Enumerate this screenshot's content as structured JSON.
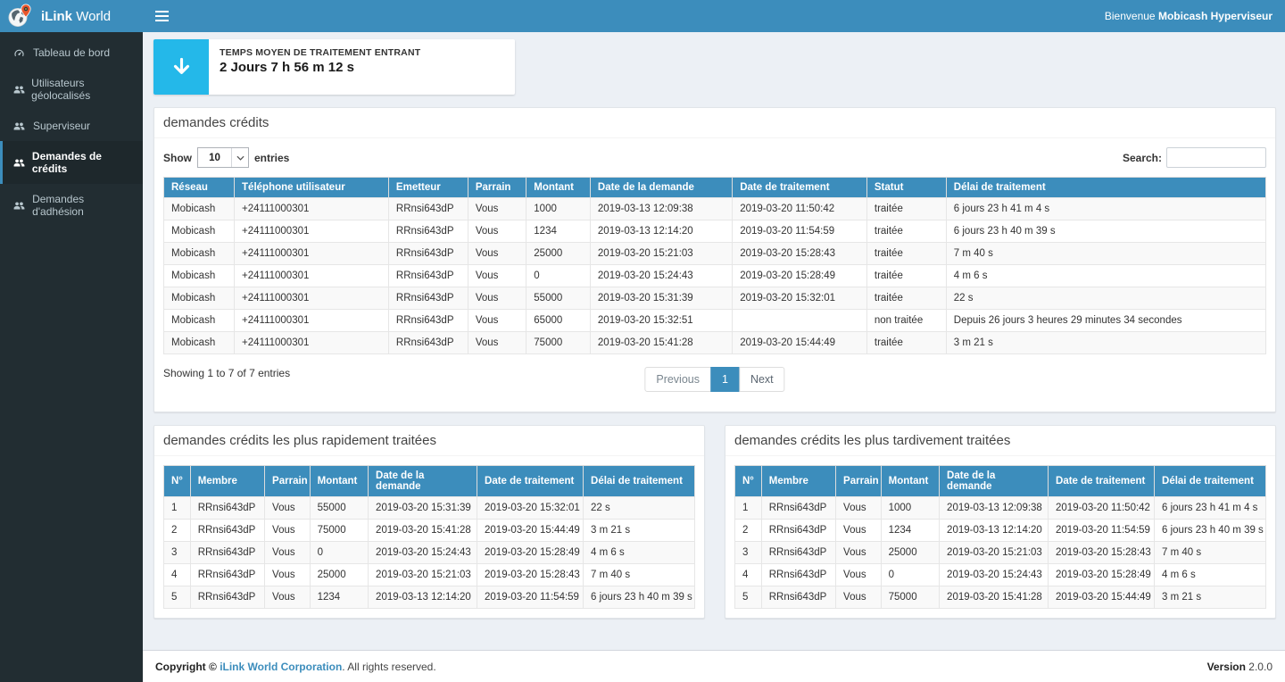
{
  "colors": {
    "navbar_blue": "#3c8dbc",
    "sidebar_dark": "#222d32",
    "sidebar_active_bg": "#1e282c",
    "aqua_accent": "#24b8e9",
    "pin_orange": "#e8552b",
    "row_stripe": "#f9f9f9",
    "content_bg": "#ecf0f5"
  },
  "brand": {
    "bold": "iLink",
    "regular": "World"
  },
  "navbar": {
    "welcome_prefix": "Bienvenue",
    "welcome_user": "Mobicash Hyperviseur"
  },
  "sidebar": {
    "items": [
      {
        "label": "Tableau de bord",
        "icon": "dashboard-icon",
        "active": false
      },
      {
        "label": "Utilisateurs géolocalisés",
        "icon": "users-icon",
        "active": false
      },
      {
        "label": "Superviseur",
        "icon": "users-icon",
        "active": false
      },
      {
        "label": "Demandes de crédits",
        "icon": "users-icon",
        "active": true
      },
      {
        "label": "Demandes d'adhésion",
        "icon": "users-icon",
        "active": false
      }
    ]
  },
  "info_card": {
    "title": "TEMPS MOYEN DE TRAITEMENT ENTRANT",
    "value": "2 Jours 7 h 56 m 12 s",
    "icon": "arrow-down-icon"
  },
  "credits_panel": {
    "title": "demandes crédits",
    "length_label_before": "Show",
    "length_value": "10",
    "length_label_after": "entries",
    "search_label": "Search:",
    "search_value": "",
    "columns": [
      "Réseau",
      "Téléphone utilisateur",
      "Emetteur",
      "Parrain",
      "Montant",
      "Date de la demande",
      "Date de traitement",
      "Statut",
      "Délai de traitement"
    ],
    "rows": [
      [
        "Mobicash",
        "+24111000301",
        "RRnsi643dP",
        "Vous",
        "1000",
        "2019-03-13 12:09:38",
        "2019-03-20 11:50:42",
        "traitée",
        "6 jours 23 h 41 m 4 s"
      ],
      [
        "Mobicash",
        "+24111000301",
        "RRnsi643dP",
        "Vous",
        "1234",
        "2019-03-13 12:14:20",
        "2019-03-20 11:54:59",
        "traitée",
        "6 jours 23 h 40 m 39 s"
      ],
      [
        "Mobicash",
        "+24111000301",
        "RRnsi643dP",
        "Vous",
        "25000",
        "2019-03-20 15:21:03",
        "2019-03-20 15:28:43",
        "traitée",
        "7 m 40 s"
      ],
      [
        "Mobicash",
        "+24111000301",
        "RRnsi643dP",
        "Vous",
        "0",
        "2019-03-20 15:24:43",
        "2019-03-20 15:28:49",
        "traitée",
        "4 m 6 s"
      ],
      [
        "Mobicash",
        "+24111000301",
        "RRnsi643dP",
        "Vous",
        "55000",
        "2019-03-20 15:31:39",
        "2019-03-20 15:32:01",
        "traitée",
        "22 s"
      ],
      [
        "Mobicash",
        "+24111000301",
        "RRnsi643dP",
        "Vous",
        "65000",
        "2019-03-20 15:32:51",
        "",
        "non traitée",
        "Depuis 26 jours 3 heures 29 minutes 34 secondes"
      ],
      [
        "Mobicash",
        "+24111000301",
        "RRnsi643dP",
        "Vous",
        "75000",
        "2019-03-20 15:41:28",
        "2019-03-20 15:44:49",
        "traitée",
        "3 m 21 s"
      ]
    ],
    "summary": "Showing 1 to 7 of 7 entries",
    "pagination": {
      "previous": "Previous",
      "page": "1",
      "next": "Next"
    }
  },
  "fastest_panel": {
    "title": "demandes crédits les plus rapidement traitées",
    "columns": [
      "N°",
      "Membre",
      "Parrain",
      "Montant",
      "Date de la demande",
      "Date de traitement",
      "Délai de traitement"
    ],
    "rows": [
      [
        "1",
        "RRnsi643dP",
        "Vous",
        "55000",
        "2019-03-20 15:31:39",
        "2019-03-20 15:32:01",
        "22 s"
      ],
      [
        "2",
        "RRnsi643dP",
        "Vous",
        "75000",
        "2019-03-20 15:41:28",
        "2019-03-20 15:44:49",
        "3 m 21 s"
      ],
      [
        "3",
        "RRnsi643dP",
        "Vous",
        "0",
        "2019-03-20 15:24:43",
        "2019-03-20 15:28:49",
        "4 m 6 s"
      ],
      [
        "4",
        "RRnsi643dP",
        "Vous",
        "25000",
        "2019-03-20 15:21:03",
        "2019-03-20 15:28:43",
        "7 m 40 s"
      ],
      [
        "5",
        "RRnsi643dP",
        "Vous",
        "1234",
        "2019-03-13 12:14:20",
        "2019-03-20 11:54:59",
        "6 jours 23 h 40 m 39 s"
      ]
    ]
  },
  "slowest_panel": {
    "title": "demandes crédits les plus tardivement traitées",
    "columns": [
      "N°",
      "Membre",
      "Parrain",
      "Montant",
      "Date de la demande",
      "Date de traitement",
      "Délai de traitement"
    ],
    "rows": [
      [
        "1",
        "RRnsi643dP",
        "Vous",
        "1000",
        "2019-03-13 12:09:38",
        "2019-03-20 11:50:42",
        "6 jours 23 h 41 m 4 s"
      ],
      [
        "2",
        "RRnsi643dP",
        "Vous",
        "1234",
        "2019-03-13 12:14:20",
        "2019-03-20 11:54:59",
        "6 jours 23 h 40 m 39 s"
      ],
      [
        "3",
        "RRnsi643dP",
        "Vous",
        "25000",
        "2019-03-20 15:21:03",
        "2019-03-20 15:28:43",
        "7 m 40 s"
      ],
      [
        "4",
        "RRnsi643dP",
        "Vous",
        "0",
        "2019-03-20 15:24:43",
        "2019-03-20 15:28:49",
        "4 m 6 s"
      ],
      [
        "5",
        "RRnsi643dP",
        "Vous",
        "75000",
        "2019-03-20 15:41:28",
        "2019-03-20 15:44:49",
        "3 m 21 s"
      ]
    ]
  },
  "footer": {
    "copyright": "Copyright ©",
    "company": "iLink World Corporation",
    "rights": ". All rights reserved.",
    "version_label": "Version",
    "version_value": "2.0.0"
  }
}
